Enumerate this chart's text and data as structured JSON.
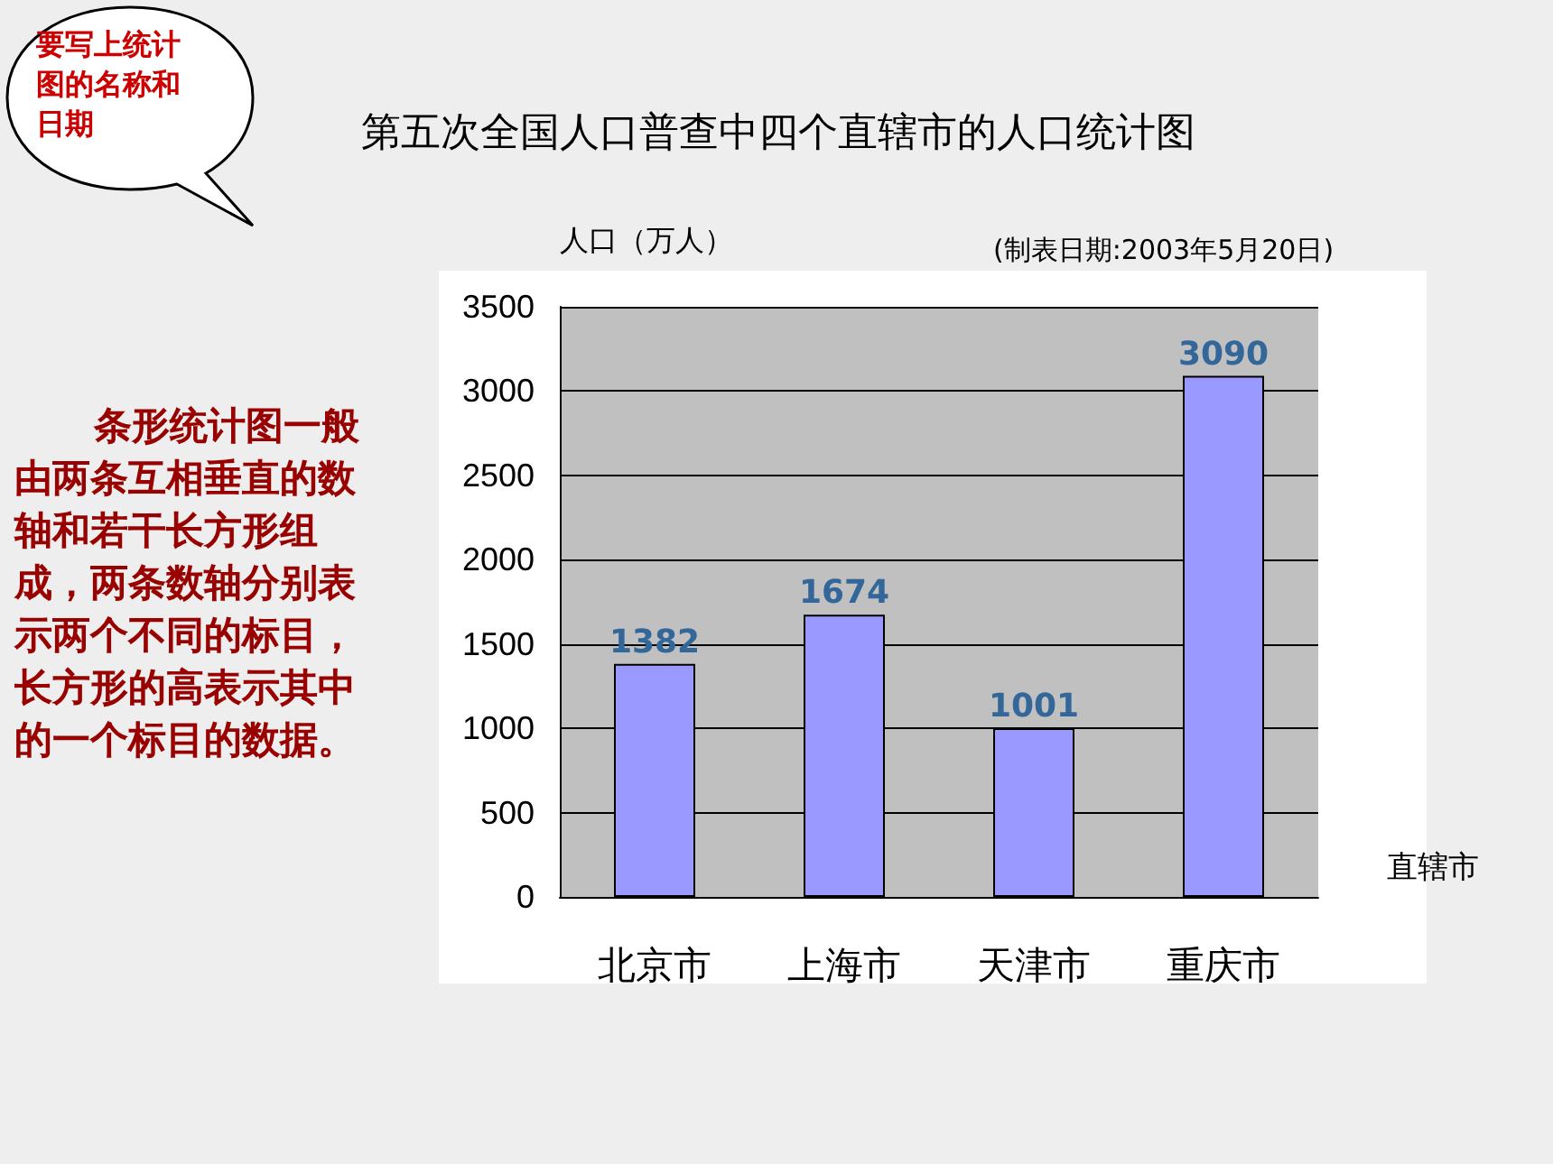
{
  "chart_data": {
    "type": "bar",
    "title": "第五次全国人口普查中四个直辖市的人口统计图",
    "subtitle": "(制表日期:2003年5月20日)",
    "xlabel": "直辖市",
    "ylabel": "人口（万人）",
    "annotations": [
      "要写上统计图的名称和日期",
      "条形统计图一般由两条互相垂直的数轴和若干长方形组成，两条数轴分别表示两个不同的标目，长方形的高表示其中的一个标目的数据。"
    ],
    "categories": [
      "北京市",
      "上海市",
      "天津市",
      "重庆市"
    ],
    "values": [
      1382,
      1674,
      1001,
      3090
    ],
    "color": "#9999ff",
    "ylim": [
      0,
      3500
    ],
    "yticks": [
      0,
      500,
      1000,
      1500,
      2000,
      2500,
      3000,
      3500
    ],
    "grid": "y",
    "data_labels": true
  }
}
